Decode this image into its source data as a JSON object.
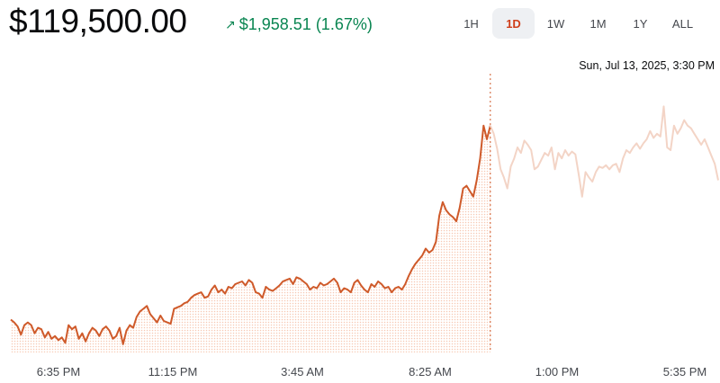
{
  "header": {
    "price": "$119,500.00",
    "change_arrow": "↗",
    "change_text": "$1,958.51 (1.67%)",
    "change_color": "#098551"
  },
  "range_tabs": [
    {
      "label": "1H",
      "active": false
    },
    {
      "label": "1D",
      "active": true
    },
    {
      "label": "1W",
      "active": false
    },
    {
      "label": "1M",
      "active": false
    },
    {
      "label": "1Y",
      "active": false
    },
    {
      "label": "ALL",
      "active": false
    }
  ],
  "hover": {
    "timestamp": "Sun, Jul 13, 2025, 3:30 PM"
  },
  "colors": {
    "line": "#cf5a2a",
    "line_faded": "#f3d4c6",
    "fill_dot": "#f6c8b3",
    "accent": "#cf3f1c"
  },
  "chart_data": {
    "type": "line",
    "x_tick_labels": [
      "6:35 PM",
      "11:15 PM",
      "3:45 AM",
      "8:25 AM",
      "1:00 PM",
      "5:35 PM"
    ],
    "hover_index": 141,
    "ylim": [
      112000,
      122000
    ],
    "series": [
      {
        "values": [
          113200,
          113100,
          112950,
          112650,
          113000,
          113100,
          113000,
          112700,
          112900,
          112850,
          112550,
          112750,
          112500,
          112600,
          112450,
          112550,
          112350,
          113000,
          112850,
          112950,
          112500,
          112700,
          112400,
          112700,
          112900,
          112800,
          112600,
          112850,
          112950,
          112800,
          112500,
          112600,
          112900,
          112300,
          112800,
          113000,
          112900,
          113300,
          113500,
          113600,
          113700,
          113400,
          113250,
          113100,
          113350,
          113150,
          113100,
          113050,
          113600,
          113650,
          113700,
          113800,
          113850,
          114000,
          114100,
          114150,
          114200,
          114000,
          114050,
          114300,
          114450,
          114200,
          114300,
          114150,
          114400,
          114350,
          114500,
          114550,
          114600,
          114450,
          114650,
          114550,
          114200,
          114150,
          114000,
          114400,
          114300,
          114250,
          114350,
          114450,
          114600,
          114650,
          114700,
          114500,
          114750,
          114700,
          114600,
          114500,
          114300,
          114400,
          114350,
          114550,
          114450,
          114500,
          114600,
          114700,
          114550,
          114200,
          114350,
          114300,
          114200,
          114550,
          114650,
          114450,
          114300,
          114200,
          114500,
          114400,
          114600,
          114500,
          114350,
          114400,
          114200,
          114350,
          114400,
          114300,
          114500,
          114800,
          115050,
          115250,
          115400,
          115550,
          115800,
          115650,
          115750,
          116050,
          117000,
          117500,
          117200,
          117050,
          116950,
          116800,
          117300,
          118000,
          118100,
          117900,
          117700,
          118300,
          119100,
          120300,
          119800,
          120300,
          120000,
          119450,
          118700,
          118400,
          118000,
          118800,
          119100,
          119500,
          119300,
          119750,
          119600,
          119400,
          118700,
          118800,
          119050,
          119300,
          119200,
          119500,
          118700,
          119300,
          119100,
          119400,
          119200,
          119350,
          119250,
          118500,
          117700,
          118600,
          118400,
          118250,
          118600,
          118800,
          118750,
          118850,
          118700,
          118850,
          118900,
          118600,
          119100,
          119400,
          119300,
          119500,
          119650,
          119450,
          119650,
          119800,
          120100,
          119850,
          120000,
          119900,
          121000,
          119500,
          119400,
          120300,
          120000,
          120200,
          120500,
          120300,
          120200,
          120000,
          119800,
          119600,
          119800,
          119500,
          119200,
          118900,
          118300
        ]
      }
    ]
  }
}
